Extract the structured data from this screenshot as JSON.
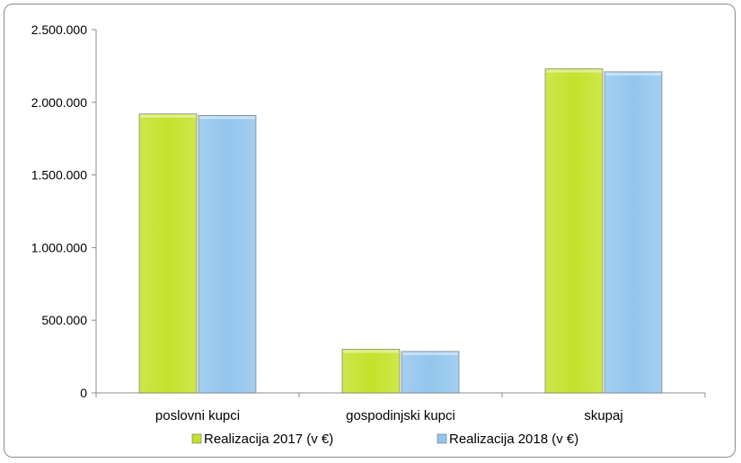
{
  "chart_data": {
    "type": "bar",
    "categories": [
      "poslovni kupci",
      "gospodinjski kupci",
      "skupaj"
    ],
    "series": [
      {
        "name": "Realizacija 2017 (v €)",
        "values": [
          1920000,
          300000,
          2230000
        ],
        "color": "#c4e22c"
      },
      {
        "name": "Realizacija 2018 (v €)",
        "values": [
          1910000,
          285000,
          2210000
        ],
        "color": "#93c6ee"
      }
    ],
    "yticks": [
      "0",
      "500.000",
      "1.000.000",
      "1.500.000",
      "2.000.000",
      "2.500.000"
    ],
    "ylim": [
      0,
      2500000
    ],
    "legend_position": "bottom",
    "grid": false
  }
}
